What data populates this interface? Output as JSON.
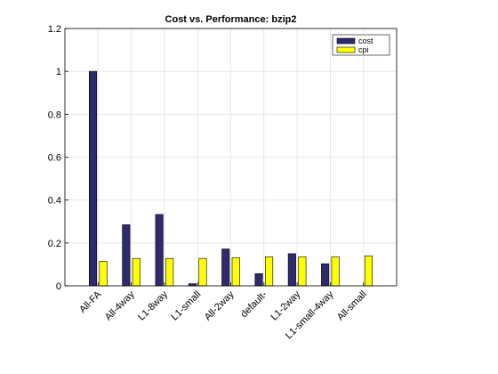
{
  "chart_data": {
    "type": "bar",
    "title": "Cost vs. Performance: bzip2",
    "xlabel": "",
    "ylabel": "",
    "categories": [
      "All-FA",
      "All-4way",
      "L1-8way",
      "L1-small",
      "All-2way",
      "default-",
      "L1-2way",
      "L1-small-4way",
      "All-small"
    ],
    "series": [
      {
        "name": "cost",
        "color": "#2f2a6e",
        "values": [
          1.0,
          0.285,
          0.333,
          0.01,
          0.172,
          0.057,
          0.15,
          0.103,
          0.0
        ]
      },
      {
        "name": "cpi",
        "color": "#ffff00",
        "values": [
          0.115,
          0.128,
          0.128,
          0.128,
          0.131,
          0.135,
          0.135,
          0.135,
          0.14
        ]
      }
    ],
    "ylim": [
      0,
      1.2
    ],
    "yticks": [
      "0",
      "0.2",
      "0.4",
      "0.6",
      "0.8",
      "1",
      "1.2"
    ],
    "grid": true,
    "legend_position": "top-right"
  }
}
